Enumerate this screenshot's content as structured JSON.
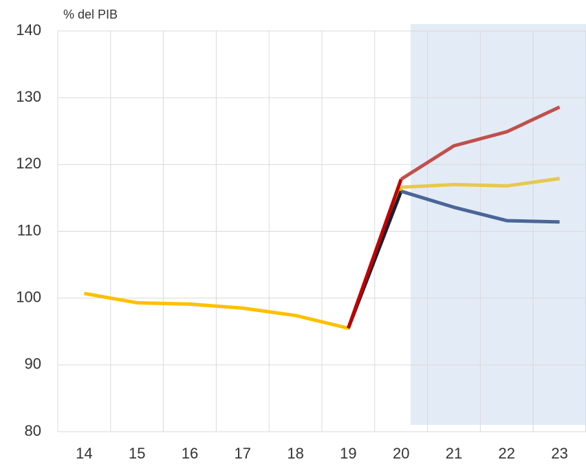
{
  "chart_data": {
    "type": "line",
    "y_axis_label": "% del PIB",
    "categories": [
      "14",
      "15",
      "16",
      "17",
      "18",
      "19",
      "20",
      "21",
      "22",
      "23"
    ],
    "series": [
      {
        "color": "#ffc000",
        "values": [
          100.7,
          99.3,
          99.1,
          98.5,
          97.4,
          95.5,
          116.6,
          null,
          null,
          null
        ]
      },
      {
        "color": "#1c1f33",
        "values": [
          null,
          null,
          null,
          null,
          null,
          95.5,
          116.0,
          null,
          null,
          null
        ]
      },
      {
        "color": "#c00000",
        "values": [
          null,
          null,
          null,
          null,
          null,
          95.5,
          117.8,
          null,
          null,
          null
        ]
      },
      {
        "color": "#c0504d",
        "values": [
          null,
          null,
          null,
          null,
          null,
          null,
          117.8,
          122.8,
          124.9,
          128.6
        ]
      },
      {
        "color": "#e8c84e",
        "values": [
          null,
          null,
          null,
          null,
          null,
          null,
          116.6,
          117.0,
          116.8,
          117.9
        ]
      },
      {
        "color": "#4a6698",
        "values": [
          null,
          null,
          null,
          null,
          null,
          null,
          116.0,
          113.6,
          111.6,
          111.4
        ]
      }
    ],
    "ylim": [
      80,
      140
    ],
    "yticks": [
      80,
      90,
      100,
      110,
      120,
      130,
      140
    ],
    "grid": true
  }
}
